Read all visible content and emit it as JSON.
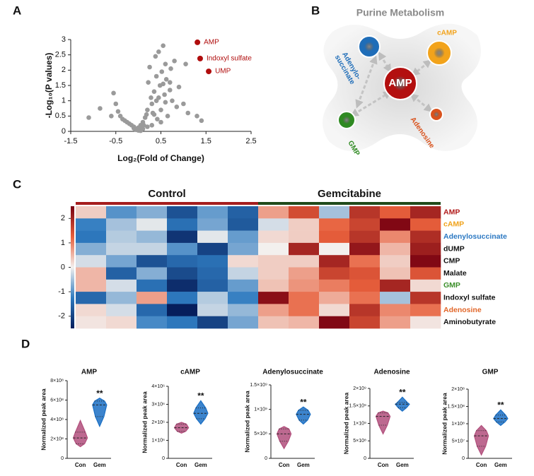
{
  "panels": [
    "A",
    "B",
    "C",
    "D"
  ],
  "chart_data": [
    {
      "type": "scatter",
      "xlabel": "Log₂(Fold of Change)",
      "ylabel": "-Log₁₀(P values)",
      "xlim": [
        -1.5,
        2.5
      ],
      "xticks": [
        -1.5,
        -0.5,
        0.5,
        1.5,
        2.5
      ],
      "ylim": [
        0,
        3
      ],
      "yticks": [
        0,
        0.5,
        1,
        1.5,
        2,
        2.5,
        3
      ],
      "series": [
        {
          "color": "#9a9a9a",
          "x": [
            -1.1,
            -0.85,
            -0.6,
            -0.55,
            -0.5,
            -0.45,
            -0.4,
            -0.35,
            -0.3,
            -0.25,
            -0.2,
            -0.15,
            -0.1,
            -0.08,
            -0.05,
            -0.03,
            0,
            0.02,
            0.05,
            0.08,
            0.1,
            0.12,
            0.15,
            0.18,
            0.2,
            0.22,
            0.25,
            0.28,
            0.3,
            0.32,
            0.35,
            0.38,
            0.4,
            0.42,
            0.45,
            0.48,
            0.5,
            0.52,
            0.55,
            0.58,
            0.6,
            0.62,
            0.65,
            0.7,
            0.72,
            0.75,
            0.8,
            0.85,
            0.9,
            1.0,
            1.05,
            1.1,
            1.3,
            1.4,
            0.3,
            0.4,
            0.5,
            0.6,
            0.7,
            0.2,
            0.1,
            -0.1,
            0.0,
            0.05,
            0.35,
            0.45,
            0.55
          ],
          "values": [
            0.45,
            0.75,
            0.5,
            1.25,
            0.9,
            0.65,
            0.5,
            0.4,
            0.35,
            0.3,
            0.25,
            0.2,
            0.15,
            0.1,
            0.05,
            0.08,
            0.03,
            0.05,
            0.02,
            0.12,
            0.3,
            0.2,
            0.45,
            0.55,
            0.7,
            1.6,
            2.1,
            1.1,
            0.9,
            0.6,
            1.3,
            2.45,
            1.8,
            0.4,
            2.6,
            1.5,
            0.7,
            1.95,
            2.8,
            1.2,
            0.95,
            1.7,
            0.5,
            1.35,
            2.05,
            1.0,
            2.3,
            0.8,
            1.45,
            0.9,
            2.2,
            0.6,
            0.5,
            0.35,
            0.2,
            1.0,
            0.3,
            2.2,
            1.6,
            0.15,
            0.08,
            0.1,
            0.12,
            0.2,
            0.55,
            1.1,
            1.55
          ]
        },
        {
          "color": "#b00d0d",
          "x": [
            1.31,
            1.37,
            1.56
          ],
          "values": [
            2.91,
            2.38,
            1.96
          ],
          "labels": [
            "AMP",
            "Indoxyl sulfate",
            "UMP"
          ]
        }
      ]
    },
    {
      "type": "heatmap",
      "groups": [
        {
          "label": "Control",
          "color": "#a51d1d"
        },
        {
          "label": "Gemcitabine",
          "color": "#1f4a1a"
        }
      ],
      "rows": [
        "AMP",
        "cAMP",
        "Adenylosuccinate",
        "dUMP",
        "CMP",
        "Malate",
        "GMP",
        "Indoxyl sulfate",
        "Adenosine",
        "Aminobutyrate"
      ],
      "row_colors": [
        "#b01818",
        "#f0a21a",
        "#2b78c2",
        "#111111",
        "#111111",
        "#111111",
        "#3c8f2a",
        "#111111",
        "#e2672a",
        "#111111"
      ],
      "zlim": [
        -2.5,
        2.5
      ],
      "zticks": [
        2,
        1,
        0,
        -1,
        -2
      ],
      "colors": [
        "#061e5c",
        "#2f7bc0",
        "#f3f0ee",
        "#e8603c",
        "#780010"
      ],
      "values": [
        [
          0.3,
          -1,
          -0.7,
          -1.8,
          -0.9,
          -1.6,
          0.7,
          1.5,
          -0.5,
          1.8,
          1.3,
          2
        ],
        [
          -1.2,
          -0.5,
          -0.1,
          -1.4,
          -0.8,
          -1.7,
          -0.2,
          0.3,
          1.2,
          1.6,
          2.4,
          1.3
        ],
        [
          -1.3,
          -0.4,
          -0.6,
          -2.2,
          -0.1,
          -0.9,
          0.2,
          0.3,
          1.3,
          1.8,
          0.9,
          1.9
        ],
        [
          -0.7,
          -0.3,
          -0.3,
          -1,
          -2,
          -0.8,
          0,
          2,
          0,
          2.2,
          0.5,
          2.1
        ],
        [
          -0.2,
          -0.8,
          -1.8,
          -1.5,
          -1.4,
          0.2,
          0.3,
          0.3,
          2,
          1.1,
          0.3,
          2.4
        ],
        [
          0.5,
          -1.6,
          -0.7,
          -1.9,
          -1.5,
          -0.3,
          0.3,
          0.7,
          1.6,
          1.4,
          0.4,
          1.4
        ],
        [
          0.5,
          -0.2,
          -1.4,
          -2.3,
          -1.6,
          -0.9,
          0.4,
          0.8,
          1,
          1.3,
          2,
          0.2
        ],
        [
          -1.5,
          -0.6,
          0.7,
          -1.3,
          -0.4,
          -1.2,
          2.3,
          1.1,
          0.6,
          1.1,
          -0.5,
          1.8
        ],
        [
          0.2,
          -0.2,
          -1.5,
          -2.5,
          -0.3,
          -0.6,
          0.7,
          1.1,
          0.2,
          1.8,
          0.9,
          1.1
        ],
        [
          0.1,
          0.2,
          -1.1,
          -1.3,
          -2,
          -0.8,
          0.4,
          0.5,
          2.4,
          1.6,
          0.7,
          0.1
        ]
      ]
    },
    {
      "type": "violin",
      "title": "AMP",
      "ylabel": "Normalized peak area",
      "categories": [
        "Con",
        "Gem"
      ],
      "annotation": "**",
      "ylim": [
        0,
        800000000
      ],
      "yticks": [
        0,
        {
          "value": 200000000,
          "label": "2×10⁸"
        },
        {
          "value": 400000000,
          "label": "4×10⁸"
        },
        {
          "value": 600000000,
          "label": "6×10⁸"
        },
        {
          "value": 800000000,
          "label": "8×10⁸"
        }
      ],
      "series": [
        {
          "color": "#b24f7c",
          "min": 120000000,
          "q1": 150000000,
          "median": 210000000,
          "q3": 270000000,
          "max": 390000000
        },
        {
          "color": "#1a6fc4",
          "min": 330000000,
          "q1": 430000000,
          "median": 550000000,
          "q3": 590000000,
          "max": 620000000
        }
      ]
    },
    {
      "type": "violin",
      "title": "cAMP",
      "ylabel": "Normalized peak area",
      "categories": [
        "Con",
        "Gem"
      ],
      "annotation": "**",
      "ylim": [
        0,
        4000000
      ],
      "yticks": [
        0,
        {
          "value": 1000000,
          "label": "1×10⁶"
        },
        {
          "value": 2000000,
          "label": "2×10⁶"
        },
        {
          "value": 3000000,
          "label": "3×10⁶"
        },
        {
          "value": 4000000,
          "label": "4×10⁶"
        }
      ],
      "series": [
        {
          "color": "#b24f7c",
          "min": 1400000,
          "q1": 1500000,
          "median": 1700000,
          "q3": 1900000,
          "max": 2000000
        },
        {
          "color": "#1a6fc4",
          "min": 1900000,
          "q1": 2200000,
          "median": 2500000,
          "q3": 2800000,
          "max": 3200000
        }
      ]
    },
    {
      "type": "violin",
      "title": "Adenylosuccinate",
      "ylabel": "Normalized peak area",
      "categories": [
        "Con",
        "Gem"
      ],
      "annotation": "**",
      "ylim": [
        0,
        1500000000
      ],
      "yticks": [
        0,
        {
          "value": 500000000,
          "label": "5×10⁸"
        },
        {
          "value": 1000000000,
          "label": "1×10⁹"
        },
        {
          "value": 1500000000,
          "label": "1.5×10⁹"
        }
      ],
      "series": [
        {
          "color": "#b24f7c",
          "min": 200000000,
          "q1": 350000000,
          "median": 500000000,
          "q3": 600000000,
          "max": 650000000
        },
        {
          "color": "#1a6fc4",
          "min": 700000000,
          "q1": 780000000,
          "median": 900000000,
          "q3": 980000000,
          "max": 1050000000
        }
      ]
    },
    {
      "type": "violin",
      "title": "Adenosine",
      "ylabel": "Normalized peak area",
      "categories": [
        "Con",
        "Gem"
      ],
      "annotation": "**",
      "ylim": [
        0,
        2000000000
      ],
      "yticks": [
        0,
        {
          "value": 500000000,
          "label": "5×10⁸"
        },
        {
          "value": 1000000000,
          "label": "1×10⁹"
        },
        {
          "value": 1500000000,
          "label": "1.5×10⁹"
        },
        {
          "value": 2000000000,
          "label": "2×10⁹"
        }
      ],
      "series": [
        {
          "color": "#b24f7c",
          "min": 700000000,
          "q1": 950000000,
          "median": 1200000000,
          "q3": 1300000000,
          "max": 1350000000
        },
        {
          "color": "#1a6fc4",
          "min": 1350000000,
          "q1": 1450000000,
          "median": 1550000000,
          "q3": 1600000000,
          "max": 1750000000
        }
      ]
    },
    {
      "type": "violin",
      "title": "GMP",
      "ylabel": "Normalized peak area",
      "categories": [
        "Con",
        "Gem"
      ],
      "annotation": "**",
      "ylim": [
        0,
        200000000
      ],
      "yticks": [
        0,
        {
          "value": 50000000,
          "label": "5×10⁷"
        },
        {
          "value": 100000000,
          "label": "1×10⁸"
        },
        {
          "value": 150000000,
          "label": "1.5×10⁸"
        },
        {
          "value": 200000000,
          "label": "2×10⁸"
        }
      ],
      "series": [
        {
          "color": "#b24f7c",
          "min": 10000000,
          "q1": 35000000,
          "median": 65000000,
          "q3": 80000000,
          "max": 95000000
        },
        {
          "color": "#1a6fc4",
          "min": 95000000,
          "q1": 105000000,
          "median": 115000000,
          "q3": 125000000,
          "max": 140000000
        }
      ]
    }
  ],
  "diagram": {
    "title": "Purine Metabolism",
    "nodes": [
      {
        "label": [
          "AMP"
        ],
        "color": "#b30f0f"
      },
      {
        "label": [
          "cAMP"
        ],
        "color": "#f2a31b"
      },
      {
        "label": [
          "Adenylo-",
          "succinate"
        ],
        "color": "#1f6db8"
      },
      {
        "label": [
          "GMP"
        ],
        "color": "#2f8a22"
      },
      {
        "label": [
          "Adenosine"
        ],
        "color": "#d9531e"
      }
    ]
  }
}
